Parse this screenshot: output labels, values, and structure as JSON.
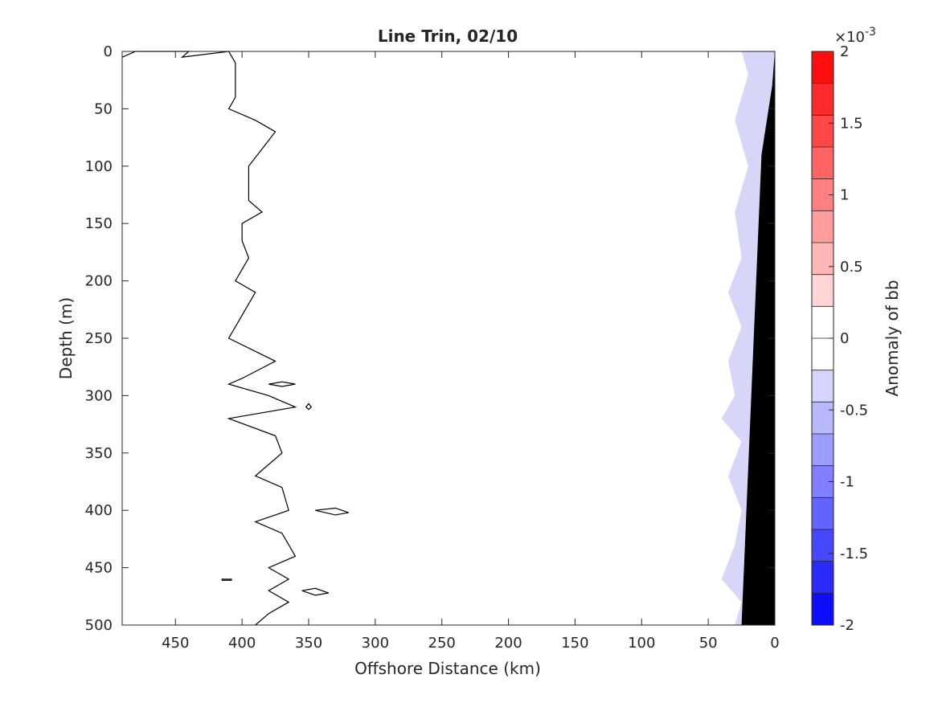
{
  "chart_data": {
    "type": "contour",
    "title": "Line Trin, 02/10",
    "xlabel": "Offshore Distance (km)",
    "ylabel": "Depth (m)",
    "xlim": [
      0,
      490
    ],
    "x_reversed": true,
    "xticks": [
      450,
      400,
      350,
      300,
      250,
      200,
      150,
      100,
      50,
      0
    ],
    "ylim": [
      0,
      500
    ],
    "y_reversed": true,
    "yticks": [
      0,
      50,
      100,
      150,
      200,
      250,
      300,
      350,
      400,
      450,
      500
    ],
    "grid": false,
    "colorbar": {
      "label": "Anomaly of bb",
      "multiplier": "×10-3",
      "multiplier_base": "×10",
      "multiplier_exp": "-3",
      "range": [
        -2,
        2
      ],
      "tick_values": [
        -2,
        -1.5,
        -1,
        -0.5,
        0,
        0.5,
        1,
        1.5,
        2
      ],
      "tick_labels": [
        "-2",
        "-1.5",
        "-1",
        "-0.5",
        "0",
        "0.5",
        "1",
        "1.5",
        "2"
      ],
      "levels": 18,
      "colormap": "blue-white-red",
      "low_color": "#0000ff",
      "high_color": "#ff0000"
    },
    "contour_line": {
      "description_level": 0,
      "points_km_m": [
        [
          490,
          5
        ],
        [
          480,
          0
        ],
        [
          440,
          0
        ],
        [
          445,
          5
        ],
        [
          410,
          0
        ],
        [
          405,
          10
        ],
        [
          405,
          40
        ],
        [
          410,
          50
        ],
        [
          390,
          60
        ],
        [
          375,
          70
        ],
        [
          385,
          85
        ],
        [
          395,
          100
        ],
        [
          395,
          130
        ],
        [
          385,
          140
        ],
        [
          400,
          150
        ],
        [
          400,
          165
        ],
        [
          395,
          180
        ],
        [
          400,
          190
        ],
        [
          405,
          200
        ],
        [
          390,
          210
        ],
        [
          400,
          230
        ],
        [
          410,
          250
        ],
        [
          375,
          270
        ],
        [
          400,
          285
        ],
        [
          410,
          290
        ],
        [
          380,
          300
        ],
        [
          360,
          310
        ],
        [
          410,
          320
        ],
        [
          375,
          335
        ],
        [
          370,
          350
        ],
        [
          390,
          370
        ],
        [
          370,
          380
        ],
        [
          365,
          400
        ],
        [
          390,
          410
        ],
        [
          370,
          420
        ],
        [
          360,
          440
        ],
        [
          380,
          450
        ],
        [
          365,
          460
        ],
        [
          380,
          470
        ],
        [
          365,
          480
        ],
        [
          380,
          490
        ],
        [
          390,
          500
        ]
      ],
      "closed_loops_km_m": [
        [
          [
            360,
            290
          ],
          [
            370,
            292
          ],
          [
            380,
            290
          ],
          [
            370,
            288
          ]
        ],
        [
          [
            345,
            400
          ],
          [
            330,
            398
          ],
          [
            320,
            402
          ],
          [
            330,
            404
          ]
        ],
        [
          [
            355,
            470
          ],
          [
            345,
            468
          ],
          [
            335,
            472
          ],
          [
            345,
            474
          ]
        ],
        [
          [
            415,
            460
          ],
          [
            408,
            460
          ],
          [
            408,
            461
          ],
          [
            415,
            461
          ]
        ],
        [
          [
            350,
            307
          ],
          [
            348,
            310
          ],
          [
            350,
            312
          ],
          [
            352,
            310
          ]
        ]
      ]
    },
    "negative_anomaly_regions_km_m": [
      [
        [
          0,
          0
        ],
        [
          0,
          500
        ],
        [
          30,
          500
        ],
        [
          25,
          480
        ],
        [
          40,
          460
        ],
        [
          30,
          430
        ],
        [
          25,
          400
        ],
        [
          35,
          370
        ],
        [
          25,
          340
        ],
        [
          40,
          320
        ],
        [
          30,
          300
        ],
        [
          35,
          270
        ],
        [
          25,
          240
        ],
        [
          35,
          210
        ],
        [
          25,
          180
        ],
        [
          30,
          140
        ],
        [
          20,
          100
        ],
        [
          30,
          60
        ],
        [
          20,
          20
        ],
        [
          25,
          0
        ]
      ]
    ],
    "land_polygon_km_m": [
      [
        0,
        0
      ],
      [
        0,
        500
      ],
      [
        25,
        500
      ],
      [
        10,
        90
      ],
      [
        2,
        30
      ]
    ]
  }
}
